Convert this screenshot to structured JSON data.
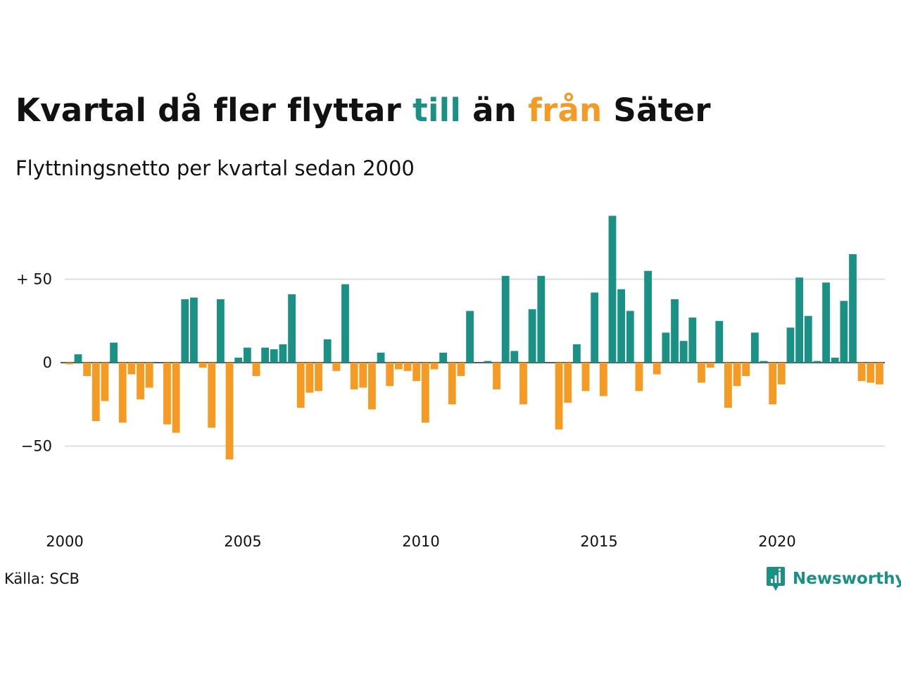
{
  "title": {
    "part1": "Kvartal då fler flyttar ",
    "till": "till",
    "part2": " än ",
    "fran": "från",
    "part3": " Säter"
  },
  "subtitle": "Flyttningsnetto per kvartal sedan 2000",
  "source": "Källa: SCB",
  "brand": {
    "name": "Newsworthy",
    "icon": "newsworthy-logo-icon"
  },
  "colors": {
    "positive": "#1a9184",
    "negative": "#f59a23",
    "grid": "#dddddd"
  },
  "chart_data": {
    "type": "bar",
    "x_start": {
      "year": 2000,
      "quarter": 1
    },
    "x_ticks": [
      2000,
      2005,
      2010,
      2015,
      2020
    ],
    "x_tick_labels": [
      "2000",
      "2005",
      "2010",
      "2015",
      "2020"
    ],
    "y_ticks": [
      50,
      0,
      -50
    ],
    "y_tick_labels": [
      "+ 50",
      "0",
      "−50"
    ],
    "ylim": [
      -82,
      90
    ],
    "grid": true,
    "values": [
      -1,
      5,
      -8,
      -35,
      -23,
      12,
      -36,
      -7,
      -22,
      -15,
      0,
      -37,
      -42,
      38,
      39,
      -3,
      -39,
      38,
      -58,
      3,
      9,
      -8,
      9,
      8,
      11,
      41,
      -27,
      -18,
      -17,
      14,
      -5,
      47,
      -16,
      -15,
      -28,
      6,
      -14,
      -4,
      -5,
      -11,
      -36,
      -4,
      6,
      -25,
      -8,
      31,
      0,
      1,
      -16,
      52,
      7,
      -25,
      32,
      52,
      0,
      -40,
      -24,
      11,
      -17,
      42,
      -20,
      88,
      44,
      31,
      -17,
      55,
      -7,
      18,
      38,
      13,
      27,
      -12,
      -3,
      25,
      -27,
      -14,
      -8,
      18,
      1,
      -25,
      -13,
      21,
      51,
      28,
      1,
      48,
      3,
      37,
      65,
      -11,
      -12,
      -13
    ]
  }
}
